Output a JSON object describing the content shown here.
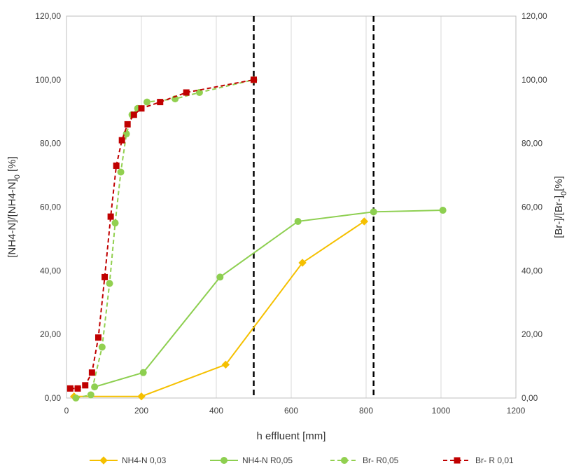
{
  "chart_data": {
    "type": "line",
    "xlabel": "h effluent [mm]",
    "ylabel_left": "[NH4-N]/[NH4-N]0 [%]",
    "ylabel_right": "[Br-]/[Br-]0[%]",
    "xlim": [
      0,
      1200
    ],
    "ylim": [
      0,
      120
    ],
    "x_ticks": [
      "0",
      "200",
      "400",
      "600",
      "800",
      "1000",
      "1200"
    ],
    "x_tick_values": [
      0,
      200,
      400,
      600,
      800,
      1000,
      1200
    ],
    "y_ticks": [
      "0,00",
      "20,00",
      "40,00",
      "60,00",
      "80,00",
      "100,00",
      "120,00"
    ],
    "y_tick_values": [
      0,
      20,
      40,
      60,
      80,
      100,
      120
    ],
    "grid": "vertical",
    "legend_position": "bottom",
    "vertical_lines": [
      500,
      820
    ],
    "series": [
      {
        "name": "NH4-N 0,03",
        "color": "#f5c000",
        "dash": "solid",
        "marker": "diamond",
        "x": [
          20,
          200,
          425,
          630,
          795
        ],
        "y": [
          0.5,
          0.5,
          10.5,
          42.5,
          55.5
        ]
      },
      {
        "name": "NH4-N R0,05",
        "color": "#8dcf50",
        "dash": "solid",
        "marker": "circle",
        "x": [
          75,
          205,
          410,
          618,
          820,
          1005
        ],
        "y": [
          3.5,
          8,
          38,
          55.5,
          58.5,
          59
        ]
      },
      {
        "name": "Br- R0,05",
        "color": "#92d050",
        "dash": "dashed",
        "marker": "circle",
        "x": [
          25,
          65,
          95,
          115,
          130,
          145,
          160,
          175,
          190,
          215,
          290,
          355,
          500
        ],
        "y": [
          0,
          1,
          16,
          36,
          55,
          71,
          83,
          89,
          91,
          93,
          94,
          96,
          100
        ]
      },
      {
        "name": "Br- R 0,01",
        "color": "#c00000",
        "dash": "dashed",
        "marker": "square",
        "x": [
          10,
          30,
          50,
          68,
          85,
          102,
          118,
          133,
          148,
          163,
          180,
          200,
          250,
          320,
          500
        ],
        "y": [
          3,
          3,
          4,
          8,
          19,
          38,
          57,
          73,
          81,
          86,
          89,
          91,
          93,
          96,
          100
        ]
      }
    ]
  }
}
